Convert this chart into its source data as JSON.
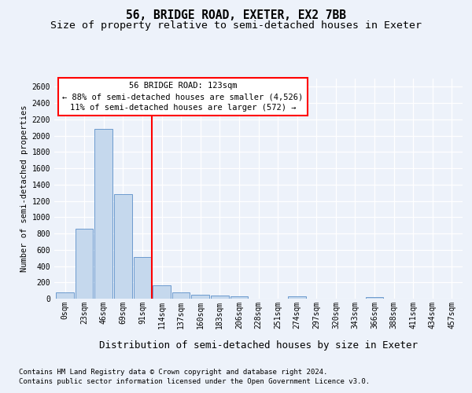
{
  "title": "56, BRIDGE ROAD, EXETER, EX2 7BB",
  "subtitle": "Size of property relative to semi-detached houses in Exeter",
  "xlabel": "Distribution of semi-detached houses by size in Exeter",
  "ylabel": "Number of semi-detached properties",
  "footnote1": "Contains HM Land Registry data © Crown copyright and database right 2024.",
  "footnote2": "Contains public sector information licensed under the Open Government Licence v3.0.",
  "bar_labels": [
    "0sqm",
    "23sqm",
    "46sqm",
    "69sqm",
    "91sqm",
    "114sqm",
    "137sqm",
    "160sqm",
    "183sqm",
    "206sqm",
    "228sqm",
    "251sqm",
    "274sqm",
    "297sqm",
    "320sqm",
    "343sqm",
    "366sqm",
    "388sqm",
    "411sqm",
    "434sqm",
    "457sqm"
  ],
  "bar_values": [
    80,
    855,
    2080,
    1285,
    510,
    160,
    80,
    45,
    35,
    25,
    0,
    0,
    28,
    0,
    0,
    0,
    18,
    0,
    0,
    0,
    0
  ],
  "bar_color": "#c5d8ed",
  "bar_edge_color": "#5b8fc9",
  "annotation_line1": "56 BRIDGE ROAD: 123sqm",
  "annotation_line2": "← 88% of semi-detached houses are smaller (4,526)",
  "annotation_line3": "11% of semi-detached houses are larger (572) →",
  "annotation_box_facecolor": "white",
  "annotation_box_edgecolor": "red",
  "vline_color": "red",
  "vline_x_index": 5,
  "ylim": [
    0,
    2700
  ],
  "yticks": [
    0,
    200,
    400,
    600,
    800,
    1000,
    1200,
    1400,
    1600,
    1800,
    2000,
    2200,
    2400,
    2600
  ],
  "title_fontsize": 10.5,
  "subtitle_fontsize": 9.5,
  "xlabel_fontsize": 9,
  "ylabel_fontsize": 7.5,
  "tick_fontsize": 7,
  "annotation_fontsize": 7.5,
  "footnote_fontsize": 6.5,
  "bg_color": "#edf2fa"
}
